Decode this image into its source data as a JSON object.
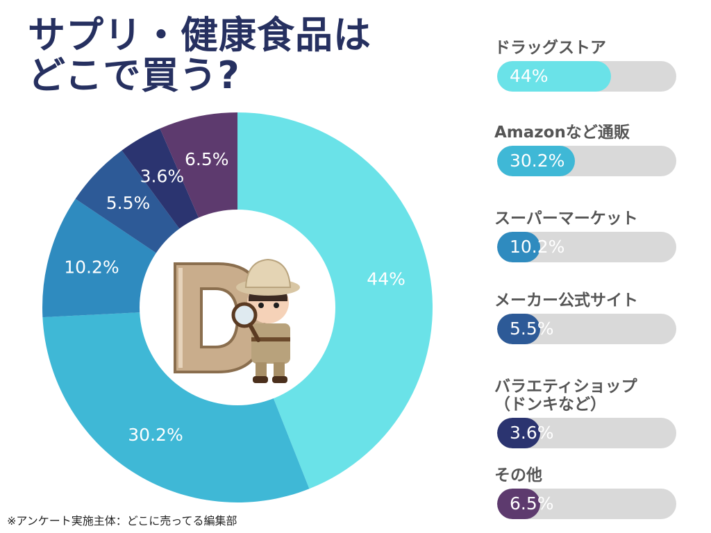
{
  "title_lines": [
    "サプリ・健康食品は",
    "どこで買う?"
  ],
  "chart_data": {
    "type": "pie",
    "style": "donut",
    "categories": [
      "ドラッグストア",
      "Amazonなど通販",
      "スーパーマーケット",
      "メーカー公式サイト",
      "バラエティショップ\n（ドンキなど）",
      "その他"
    ],
    "values": [
      44,
      30.2,
      10.2,
      5.5,
      3.6,
      6.5
    ],
    "value_labels": [
      "44%",
      "30.2%",
      "10.2%",
      "5.5%",
      "3.6%",
      "6.5%"
    ],
    "colors": [
      "#6ae2e8",
      "#3fb8d6",
      "#2f8bbf",
      "#2d5a97",
      "#2b3470",
      "#5d3a6e"
    ]
  },
  "bar_labels": [
    "ドラッグストア",
    "Amazonなど通販",
    "スーパーマーケット",
    "メーカー公式サイト",
    "バラエティショップ\n（ドンキなど）",
    "その他"
  ],
  "bar_values": [
    "44%",
    "30.2%",
    "10.2%",
    "5.5%",
    "3.6%",
    "6.5%"
  ],
  "center_image": "mascot-explorer-with-letter-d",
  "footnote": "※アンケート実施主体：どこに売ってる編集部"
}
